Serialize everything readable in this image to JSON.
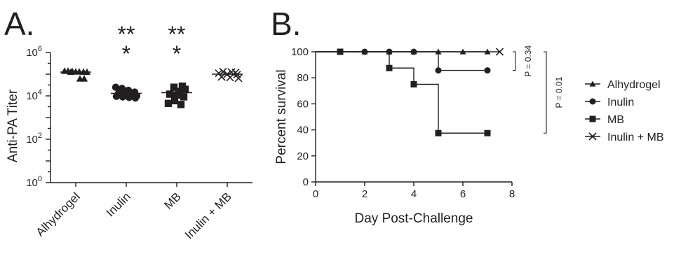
{
  "chart_data": [
    {
      "panel_label": "A.",
      "type": "scatter",
      "ylabel": "Anti-PA Titer",
      "yscale": "log",
      "ylim": [
        1,
        1000000
      ],
      "yticks": [
        {
          "value": 1,
          "base": "10",
          "exp": "0"
        },
        {
          "value": 100,
          "base": "10",
          "exp": "2"
        },
        {
          "value": 10000,
          "base": "10",
          "exp": "4"
        },
        {
          "value": 1000000,
          "base": "10",
          "exp": "6"
        }
      ],
      "categories": [
        "Alhydrogel",
        "Inulin",
        "MB",
        "Inulin + MB"
      ],
      "groups": [
        {
          "category": "Alhydrogel",
          "marker": "triangle",
          "mean": 125000,
          "values": [
            140000,
            140000,
            135000,
            130000,
            130000,
            128000,
            125000,
            125000,
            62000,
            62000
          ]
        },
        {
          "category": "Inulin",
          "marker": "circle",
          "mean": 13000,
          "values": [
            25000,
            22000,
            18000,
            15000,
            13000,
            12000,
            11000,
            10000,
            9500,
            9000,
            8500,
            8000
          ]
        },
        {
          "category": "MB",
          "marker": "square",
          "mean": 14000,
          "values": [
            28000,
            25000,
            20000,
            16000,
            12000,
            11000,
            9000,
            6000,
            4500,
            4000
          ]
        },
        {
          "category": "Inulin + MB",
          "marker": "x",
          "mean": 100000,
          "values": [
            130000,
            125000,
            120000,
            110000,
            100000,
            95000,
            75000,
            70000,
            65000
          ]
        }
      ],
      "annotations": [
        {
          "category": "Inulin",
          "lines": [
            "**",
            "*"
          ]
        },
        {
          "category": "MB",
          "lines": [
            "**",
            "*"
          ]
        }
      ]
    },
    {
      "panel_label": "B.",
      "type": "line",
      "xlabel": "Day Post-Challenge",
      "ylabel": "Percent survival",
      "xlim": [
        0,
        8
      ],
      "ylim": [
        0,
        100
      ],
      "xticks": [
        0,
        2,
        4,
        6,
        8
      ],
      "yticks": [
        0,
        20,
        40,
        60,
        80,
        100
      ],
      "series": [
        {
          "name": "Alhydrogel",
          "marker": "triangle",
          "x": [
            0,
            7
          ],
          "y": [
            100,
            100
          ],
          "points": [
            [
              1,
              100
            ],
            [
              2,
              100
            ],
            [
              3,
              100
            ],
            [
              4,
              100
            ],
            [
              5,
              100
            ],
            [
              6,
              100
            ],
            [
              7,
              100
            ]
          ]
        },
        {
          "name": "Inulin",
          "marker": "circle",
          "x": [
            0,
            5,
            5,
            7
          ],
          "y": [
            100,
            100,
            85.7,
            85.7
          ],
          "points": [
            [
              1,
              100
            ],
            [
              2,
              100
            ],
            [
              3,
              100
            ],
            [
              4,
              100
            ],
            [
              5,
              85.7
            ],
            [
              7,
              85.7
            ]
          ]
        },
        {
          "name": "MB",
          "marker": "square",
          "x": [
            0,
            3,
            3,
            4,
            4,
            5,
            5,
            7
          ],
          "y": [
            100,
            100,
            87.5,
            87.5,
            75,
            75,
            37.5,
            37.5
          ],
          "points": [
            [
              1,
              100
            ],
            [
              3,
              87.5
            ],
            [
              4,
              75
            ],
            [
              5,
              37.5
            ],
            [
              7,
              37.5
            ]
          ]
        },
        {
          "name": "Inulin + MB",
          "marker": "x",
          "x": [
            0,
            7.5
          ],
          "y": [
            100,
            100
          ],
          "points": [
            [
              7.5,
              100
            ]
          ]
        }
      ],
      "comparisons": [
        {
          "label": "P = 0.34",
          "range": [
            85.7,
            100
          ]
        },
        {
          "label": "P = 0.01",
          "range": [
            37.5,
            100
          ]
        }
      ],
      "legend_position": "right"
    }
  ]
}
